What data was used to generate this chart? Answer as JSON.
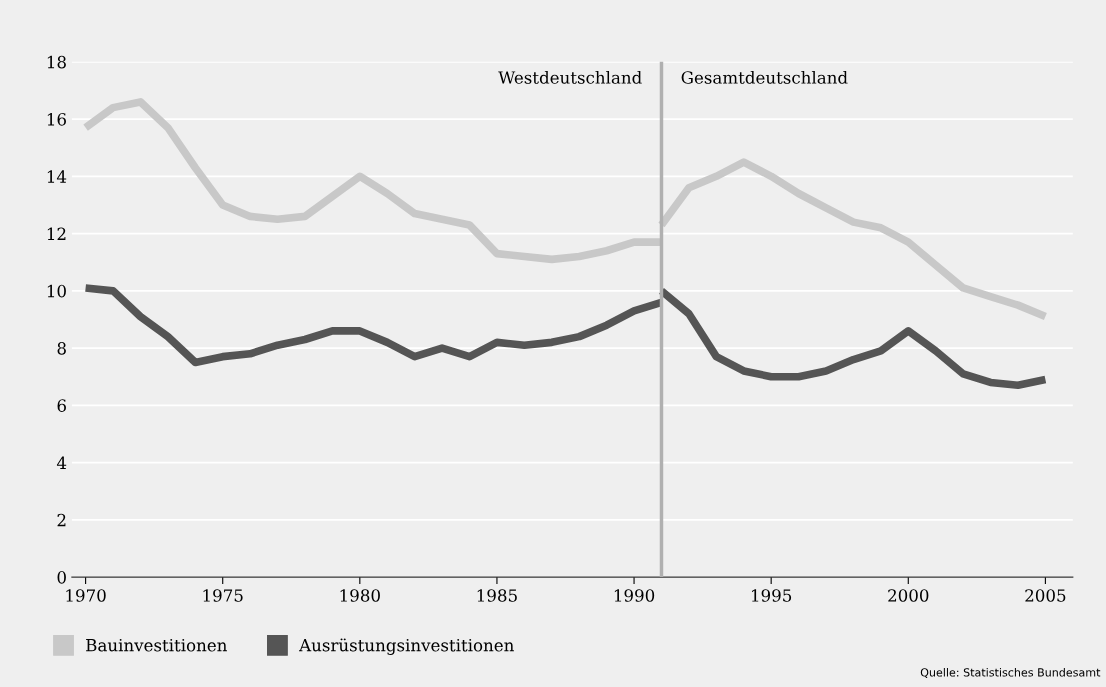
{
  "chart_data": {
    "type": "line",
    "xlim": [
      1969.5,
      2006
    ],
    "ylim": [
      0,
      18
    ],
    "yticks": [
      0,
      2,
      4,
      6,
      8,
      10,
      12,
      14,
      16,
      18
    ],
    "xticks": [
      1970,
      1975,
      1980,
      1985,
      1990,
      1995,
      2000,
      2005
    ],
    "grid": "y",
    "legend": "bottom left",
    "line_style": "solid",
    "marker": "none",
    "series": [
      {
        "name": "Bauinvestitionen",
        "color": "#c8c8c8",
        "x": [
          1970,
          1971,
          1972,
          1973,
          1974,
          1975,
          1976,
          1977,
          1978,
          1979,
          1980,
          1981,
          1982,
          1983,
          1984,
          1985,
          1986,
          1987,
          1988,
          1989,
          1990,
          1991
        ],
        "values": [
          15.7,
          16.4,
          16.6,
          15.7,
          14.3,
          13.0,
          12.6,
          12.5,
          12.6,
          13.3,
          14.0,
          13.4,
          12.7,
          12.5,
          12.3,
          11.3,
          11.2,
          11.1,
          11.2,
          11.4,
          11.7,
          11.7
        ]
      },
      {
        "name": "Ausrüstungsinvestitionen",
        "color": "#555555",
        "x": [
          1970,
          1971,
          1972,
          1973,
          1974,
          1975,
          1976,
          1977,
          1978,
          1979,
          1980,
          1981,
          1982,
          1983,
          1984,
          1985,
          1986,
          1987,
          1988,
          1989,
          1990,
          1991
        ],
        "values": [
          10.1,
          10.0,
          9.1,
          8.4,
          7.5,
          7.7,
          7.8,
          8.1,
          8.3,
          8.6,
          8.6,
          8.2,
          7.7,
          8.0,
          7.7,
          8.2,
          8.1,
          8.2,
          8.4,
          8.8,
          9.3,
          9.6
        ]
      },
      {
        "color": "#c8c8c8",
        "x": [
          1991,
          1992,
          1993,
          1994,
          1995,
          1996,
          1997,
          1998,
          1999,
          2000,
          2001,
          2002,
          2003,
          2004,
          2005
        ],
        "values": [
          12.3,
          13.6,
          14.0,
          14.5,
          14.0,
          13.4,
          12.9,
          12.4,
          12.2,
          11.7,
          10.9,
          10.1,
          9.8,
          9.5,
          9.1
        ]
      },
      {
        "color": "#555555",
        "x": [
          1991,
          1992,
          1993,
          1994,
          1995,
          1996,
          1997,
          1998,
          1999,
          2000,
          2001,
          2002,
          2003,
          2004,
          2005
        ],
        "values": [
          10.0,
          9.2,
          7.7,
          7.2,
          7.0,
          7.0,
          7.2,
          7.6,
          7.9,
          8.6,
          7.9,
          7.1,
          6.8,
          6.7,
          6.9
        ]
      }
    ],
    "ref_lines": [
      {
        "axis": "x",
        "value": 1991,
        "label": null,
        "color": "#b0b0b0"
      }
    ],
    "annotations": [
      {
        "text": "Westdeutschland",
        "x": 1991,
        "y": 17.4
      },
      {
        "text": "Gesamtdeutschland",
        "x": 1991,
        "y": 17.4
      },
      "Quelle: Statistisches Bundesamt"
    ]
  }
}
